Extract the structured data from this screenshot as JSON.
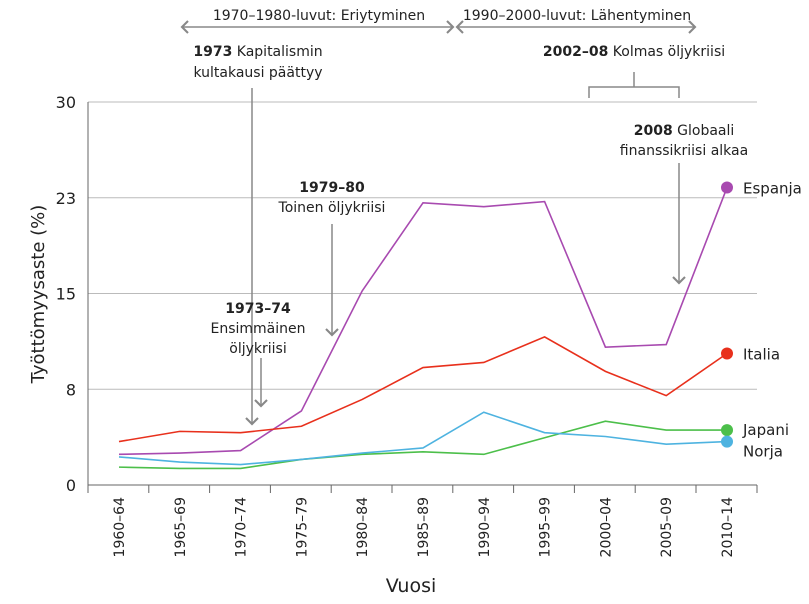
{
  "chart_data": {
    "type": "line",
    "xlabel": "Vuosi",
    "ylabel": "Työttömyysaste (%)",
    "categories": [
      "1960–64",
      "1965–69",
      "1970–74",
      "1975–79",
      "1980–84",
      "1985–89",
      "1990–94",
      "1995–99",
      "2000–04",
      "2005–09",
      "2010–14"
    ],
    "ylim": [
      0,
      30
    ],
    "yticks": [
      0,
      7.5,
      15,
      22.5,
      30
    ],
    "ytick_labels": [
      "0",
      "8",
      "15",
      "23",
      "30"
    ],
    "grid": "horizontal",
    "series": [
      {
        "name": "Espanja",
        "color": "#a84ab0",
        "values": [
          2.4,
          2.5,
          2.7,
          5.8,
          15.2,
          22.1,
          21.8,
          22.2,
          10.8,
          11.0,
          23.3
        ]
      },
      {
        "name": "Italia",
        "color": "#e8301c",
        "values": [
          3.4,
          4.2,
          4.1,
          4.6,
          6.7,
          9.2,
          9.6,
          11.6,
          8.9,
          7.0,
          10.3
        ]
      },
      {
        "name": "Japani",
        "color": "#4cbf4a",
        "values": [
          1.4,
          1.3,
          1.3,
          2.0,
          2.4,
          2.6,
          2.4,
          3.7,
          5.0,
          4.3,
          4.3
        ]
      },
      {
        "name": "Norja",
        "color": "#4eb3e0",
        "values": [
          2.2,
          1.8,
          1.6,
          2.0,
          2.5,
          2.9,
          5.7,
          4.1,
          3.8,
          3.2,
          3.4
        ]
      }
    ],
    "annotations": {
      "period1": "1970–1980-luvut: Eriytyminen",
      "period2": "1990–2000-luvut: Lähentyminen",
      "a1973_bold": "1973",
      "a1973_text": "Kapitalismin",
      "a1973_line2": "kultakausi päättyy",
      "a197374_bold": "1973–74",
      "a197374_line2": "Ensimmäinen",
      "a197374_line3": "öljykriisi",
      "a197980_bold": "1979–80",
      "a197980_line2": "Toinen öljykriisi",
      "a200208_bold": "2002–08",
      "a200208_text": "Kolmas öljykriisi",
      "a2008_bold": "2008",
      "a2008_text": "Globaali",
      "a2008_line2": "finanssikriisi alkaa"
    }
  }
}
